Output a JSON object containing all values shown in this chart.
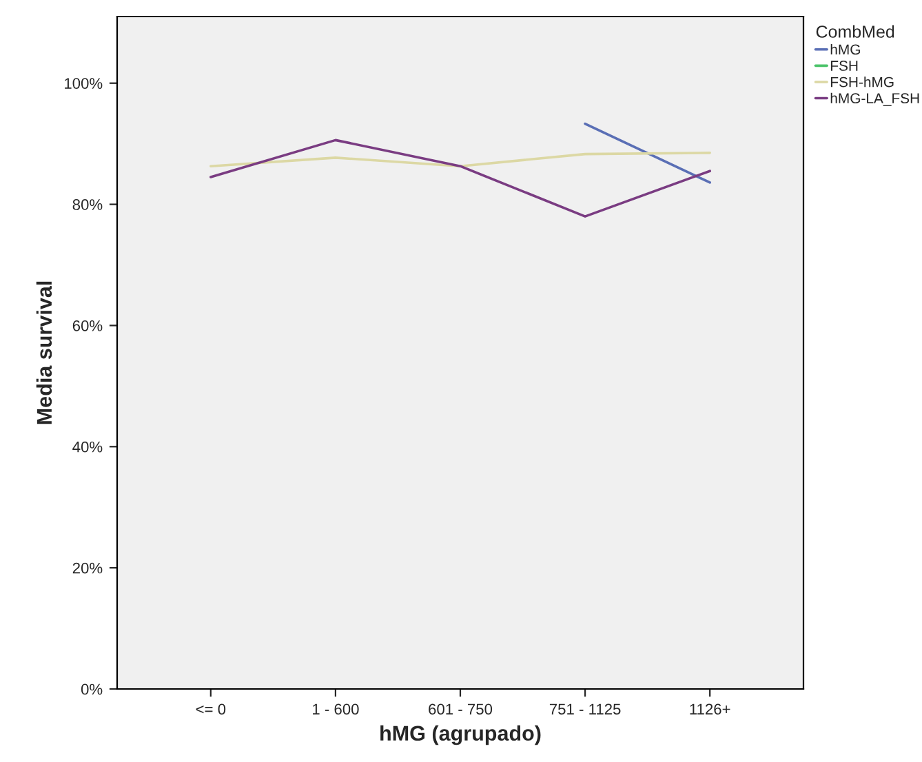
{
  "chart_data": {
    "type": "line",
    "xlabel": "hMG (agrupado)",
    "ylabel": "Media survival",
    "legend_title": "CombMed",
    "legend": "right",
    "categories": [
      "<= 0",
      "1 - 600",
      "601 - 750",
      "751 - 1125",
      "1126+"
    ],
    "series": [
      {
        "name": "hMG",
        "color": "#5a6fb5",
        "values": [
          null,
          null,
          null,
          93.3,
          83.6
        ]
      },
      {
        "name": "FSH",
        "color": "#4cc46a",
        "values": [
          null,
          null,
          null,
          null,
          null
        ]
      },
      {
        "name": "FSH-hMG",
        "color": "#dcd8a4",
        "values": [
          86.3,
          87.7,
          86.3,
          88.3,
          88.5
        ]
      },
      {
        "name": "hMG-LA_FSH",
        "color": "#7a3c82",
        "values": [
          84.5,
          90.6,
          86.3,
          78.0,
          85.5
        ]
      }
    ],
    "ylim": [
      0,
      111
    ],
    "yticks": [
      {
        "value": 0,
        "label": "0%"
      },
      {
        "value": 20,
        "label": "20%"
      },
      {
        "value": 40,
        "label": "40%"
      },
      {
        "value": 60,
        "label": "60%"
      },
      {
        "value": 80,
        "label": "80%"
      },
      {
        "value": 100,
        "label": "100%"
      }
    ],
    "grid": false,
    "marker": "none",
    "line_style": "solid"
  }
}
